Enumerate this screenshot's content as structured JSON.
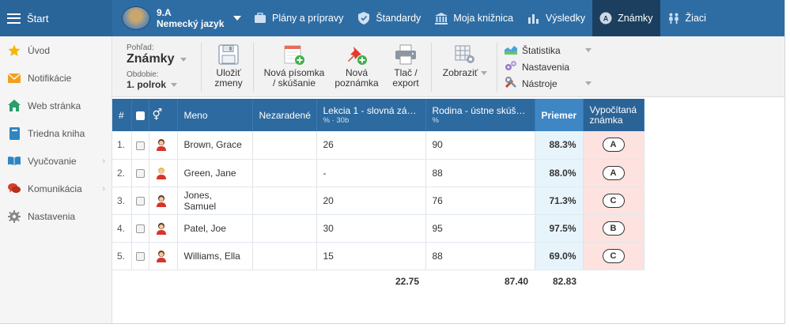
{
  "topbar": {
    "start_label": "Štart",
    "class_name": "9.A",
    "class_subject": "Nemecký jazyk",
    "tabs": [
      {
        "label": "Plány a prípravy",
        "icon": "briefcase-icon"
      },
      {
        "label": "Štandardy",
        "icon": "shield-icon"
      },
      {
        "label": "Moja knižnica",
        "icon": "library-icon"
      },
      {
        "label": "Výsledky",
        "icon": "bar-chart-icon"
      },
      {
        "label": "Známky",
        "icon": "grades-icon",
        "active": true
      },
      {
        "label": "Žiaci",
        "icon": "students-icon"
      }
    ]
  },
  "sidebar": {
    "items": [
      {
        "label": "Úvod",
        "icon": "star-icon"
      },
      {
        "label": "Notifikácie",
        "icon": "envelope-icon"
      },
      {
        "label": "Web stránka",
        "icon": "home-icon"
      },
      {
        "label": "Triedna kniha",
        "icon": "book-icon"
      },
      {
        "label": "Vyučovanie",
        "icon": "open-book-icon",
        "chevron": "›"
      },
      {
        "label": "Komunikácia",
        "icon": "chat-icon",
        "chevron": "›"
      },
      {
        "label": "Nastavenia",
        "icon": "gear-icon"
      }
    ]
  },
  "toolbar": {
    "view_label": "Pohľad:",
    "view_value": "Známky",
    "period_label": "Obdobie:",
    "period_value": "1. polrok",
    "save_line1": "Uložiť",
    "save_line2": "zmeny",
    "new_test_line1": "Nová písomka",
    "new_test_line2": "/ skúšanie",
    "new_note_line1": "Nová",
    "new_note_line2": "poznámka",
    "print_line1": "Tlač /",
    "print_line2": "export",
    "show_label": "Zobraziť",
    "statistics_label": "Štatistika",
    "settings_label": "Nastavenia",
    "tools_label": "Nástroje"
  },
  "table": {
    "headers": {
      "num": "#",
      "gender": "⚥",
      "name": "Meno",
      "unassigned": "Nezaradené",
      "col1": "Lekcia 1 - slovná zá…",
      "col1_unit": "% · 30b",
      "col2": "Rodina - ústne skúš…",
      "col2_unit": "%",
      "average": "Priemer",
      "calc_line1": "Vypočítaná",
      "calc_line2": "známka"
    },
    "rows": [
      {
        "num": "1.",
        "name": "Brown, Grace",
        "unassigned": "",
        "col1": "26",
        "col2": "90",
        "average": "88.3%",
        "grade": "A",
        "avatar": "female"
      },
      {
        "num": "2.",
        "name": "Green, Jane",
        "unassigned": "",
        "col1": "-",
        "col2": "88",
        "average": "88.0%",
        "grade": "A",
        "avatar": "female-blond"
      },
      {
        "num": "3.",
        "name": "Jones, Samuel",
        "unassigned": "",
        "col1": "20",
        "col2": "76",
        "average": "71.3%",
        "grade": "C",
        "avatar": "male"
      },
      {
        "num": "4.",
        "name": "Patel, Joe",
        "unassigned": "",
        "col1": "30",
        "col2": "95",
        "average": "97.5%",
        "grade": "B",
        "avatar": "male"
      },
      {
        "num": "5.",
        "name": "Williams, Ella",
        "unassigned": "",
        "col1": "15",
        "col2": "88",
        "average": "69.0%",
        "grade": "C",
        "avatar": "female"
      }
    ],
    "totals": {
      "col1": "22.75",
      "col2": "87.40",
      "average": "82.83"
    }
  }
}
